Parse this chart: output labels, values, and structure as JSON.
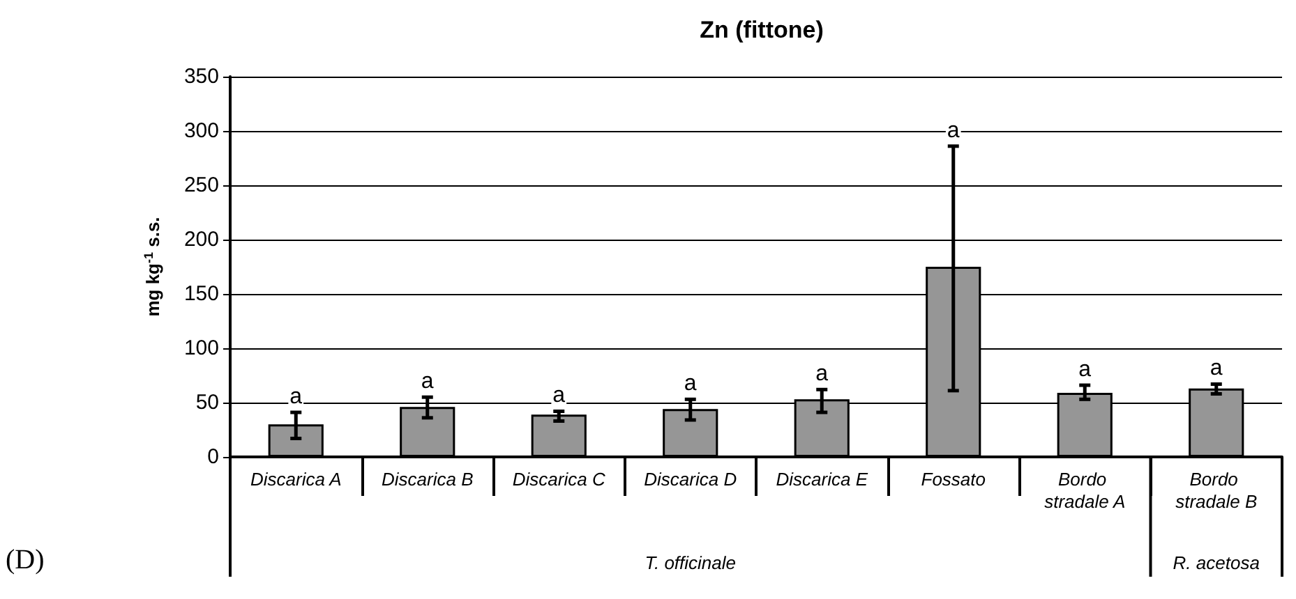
{
  "chart_data": {
    "type": "bar",
    "title": "Zn (fittone)",
    "ylabel": "mg kg$^{-1}$ s.s.",
    "categories": [
      "Discarica A",
      "Discarica B",
      "Discarica C",
      "Discarica D",
      "Discarica E",
      "Fossato",
      "Bordo stradale A",
      "Bordo stradale B"
    ],
    "values": [
      30,
      46,
      39,
      44,
      53,
      175,
      59,
      63
    ],
    "errors": [
      [
        17,
        41
      ],
      [
        36,
        55
      ],
      [
        33,
        42
      ],
      [
        34,
        53
      ],
      [
        41,
        62
      ],
      [
        61,
        286
      ],
      [
        53,
        66
      ],
      [
        58,
        67
      ]
    ],
    "color": "#969696",
    "ylim": [
      0,
      350
    ],
    "yticks": [
      0,
      50,
      100,
      150,
      200,
      250,
      300,
      350
    ],
    "grid": "y",
    "annotations": [
      {
        "text": "a",
        "x": "Discarica A",
        "y": 41
      },
      {
        "text": "a",
        "x": "Discarica B",
        "y": 55
      },
      {
        "text": "a",
        "x": "Discarica C",
        "y": 42
      },
      {
        "text": "a",
        "x": "Discarica D",
        "y": 53
      },
      {
        "text": "a",
        "x": "Discarica E",
        "y": 62
      },
      {
        "text": "a",
        "x": "Fossato",
        "y": 286
      },
      {
        "text": "a",
        "x": "Bordo stradale A",
        "y": 66
      },
      {
        "text": "a",
        "x": "Bordo stradale B",
        "y": 67
      },
      "T. officinale",
      "R. acetosa",
      "(D)"
    ]
  }
}
